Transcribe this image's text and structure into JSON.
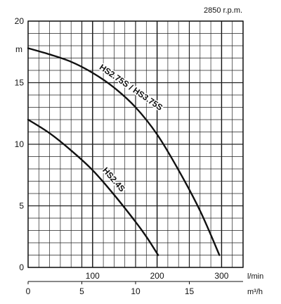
{
  "chart_data": {
    "type": "line",
    "annotation": "2850 r.p.m.",
    "y_unit": "m",
    "ylim": [
      0,
      20
    ],
    "y_ticks": [
      0,
      5,
      10,
      15,
      20
    ],
    "x_flow_unit": "l/min",
    "x_flow_ticks": [
      100,
      200,
      300
    ],
    "x_flow_lim": [
      0,
      333.3
    ],
    "x_m3h_unit": "m³/h",
    "x_m3h_ticks": [
      0,
      5,
      10,
      15
    ],
    "x_m3h_lim": [
      0,
      20
    ],
    "grid": true,
    "series": [
      {
        "name": "HS2.75S / HS3.75S",
        "x_m3h": [
          0,
          2,
          4,
          6,
          8,
          10,
          12,
          14,
          16,
          17.8
        ],
        "y": [
          17.8,
          17.3,
          16.7,
          15.8,
          14.6,
          13.0,
          10.8,
          7.9,
          4.6,
          1.0
        ],
        "color": "#111111"
      },
      {
        "name": "HS2.4S",
        "x_m3h": [
          0,
          2,
          4,
          6,
          8,
          10,
          11,
          12.1
        ],
        "y": [
          12.0,
          10.9,
          9.5,
          7.9,
          5.9,
          3.7,
          2.5,
          1.0
        ],
        "color": "#111111"
      }
    ]
  }
}
